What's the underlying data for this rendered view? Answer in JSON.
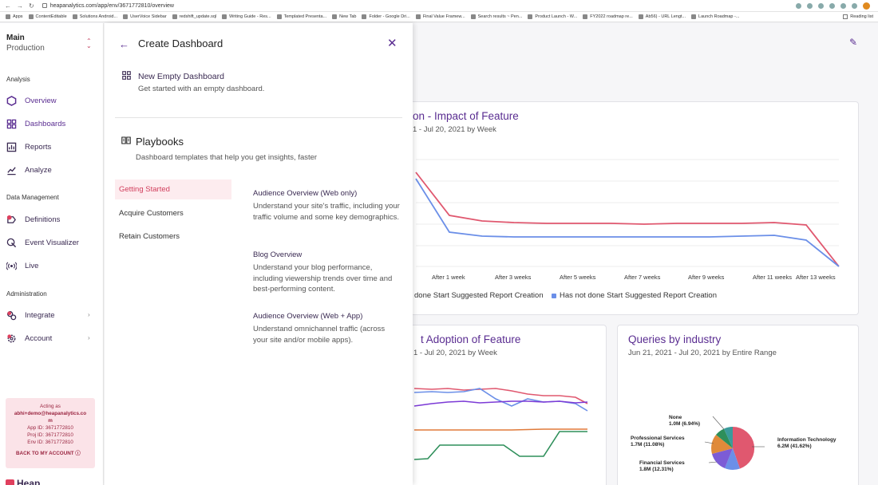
{
  "browser": {
    "url": "heapanalytics.com/app/env/3671772810/overview",
    "bookmarks": [
      "Apps",
      "ContentEditable",
      "Solutions Android...",
      "UserVoice Sidebar",
      "redshift_update.sql",
      "Writing Guide - Res...",
      "Templated Presenta...",
      "New Tab",
      "Folder - Google Dri...",
      "Final Value Framew...",
      "Search results ~ Pen...",
      "Product Launch - W...",
      "FY2022 roadmap re...",
      "Ab56) - URL Lengt...",
      "Launch Roadmap -..."
    ],
    "reading_list": "Reading list"
  },
  "sidebar": {
    "env_name": "Main",
    "env_sub": "Production",
    "sections": {
      "analysis": "Analysis",
      "data_management": "Data Management",
      "administration": "Administration"
    },
    "items": {
      "overview": "Overview",
      "dashboards": "Dashboards",
      "reports": "Reports",
      "analyze": "Analyze",
      "definitions": "Definitions",
      "event_visualizer": "Event Visualizer",
      "live": "Live",
      "integrate": "Integrate",
      "account": "Account"
    },
    "acting": {
      "label": "Acting as",
      "email_line1": "abhi+demo@heapanalytics.co",
      "email_line2": "m",
      "app_id": "App ID: 3671772810",
      "proj_id": "Proj ID: 3671772810",
      "env_id": "Env ID: 3671772810",
      "back": "BACK TO MY ACCOUNT"
    },
    "logo": "Heap"
  },
  "panel": {
    "title": "Create Dashboard",
    "new_empty_title": "New Empty Dashboard",
    "new_empty_sub": "Get started with an empty dashboard.",
    "playbooks_title": "Playbooks",
    "playbooks_sub": "Dashboard templates that help you get insights, faster",
    "categories": [
      "Getting Started",
      "Acquire Customers",
      "Retain Customers"
    ],
    "templates": [
      {
        "title": "Audience Overview (Web only)",
        "desc": "Understand your site's traffic, including your traffic volume and some key demographics."
      },
      {
        "title": "Blog Overview",
        "desc": "Understand your blog performance, including viewership trends over time and best-performing content."
      },
      {
        "title": "Audience Overview (Web + App)",
        "desc": "Understand omnichannel traffic (across your site and/or mobile apps)."
      }
    ]
  },
  "cards": {
    "retention": {
      "title": "on - Impact of Feature",
      "sub": "1 - Jul 20, 2021 by Week",
      "xlabels": [
        "After 1 week",
        "After 3 weeks",
        "After 5 weeks",
        "After 7 weeks",
        "After 9 weeks",
        "After 11 weeks",
        "After 13 weeks"
      ],
      "legend_a": "done Start Suggested Report Creation",
      "legend_b": "Has not done Start Suggested Report Creation"
    },
    "adoption": {
      "title": "t Adoption of Feature",
      "sub": "1 - Jul 20, 2021 by Week"
    },
    "queries": {
      "title": "Queries by industry",
      "sub": "Jun 21, 2021 - Jul 20, 2021 by Entire Range",
      "labels": [
        {
          "name": "None",
          "value": "1.0M (6.94%)"
        },
        {
          "name": "Professional Services",
          "value": "1.7M (11.08%)"
        },
        {
          "name": "Financial Services",
          "value": "1.8M (12.31%)"
        },
        {
          "name": "Information Technology",
          "value": "6.2M (41.62%)"
        }
      ]
    }
  },
  "colors": {
    "accent": "#5a2d91",
    "brand_red": "#e0405e",
    "series_red": "#e0586f",
    "series_blue": "#6b8fe8"
  }
}
